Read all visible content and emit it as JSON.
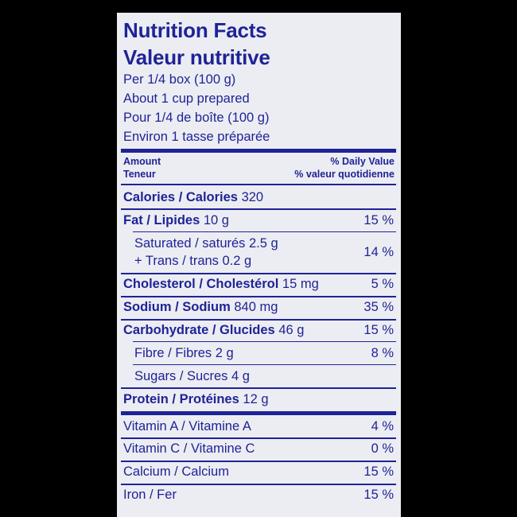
{
  "title": {
    "en": "Nutrition Facts",
    "fr": "Valeur nutritive"
  },
  "serving": [
    "Per 1/4 box (100 g)",
    "About 1 cup prepared",
    "Pour 1/4 de boîte (100 g)",
    "Environ 1 tasse préparée"
  ],
  "header": {
    "amount_en": "Amount",
    "amount_fr": "Teneur",
    "dv_en": "% Daily Value",
    "dv_fr": "% valeur quotidienne"
  },
  "calories": {
    "label": "Calories / Calories",
    "value": "320"
  },
  "fat": {
    "label": "Fat / Lipides",
    "amount": "10 g",
    "dv": "15 %"
  },
  "saturated": {
    "line1": "Saturated / saturés 2.5 g",
    "line2": "+ Trans / trans 0.2 g",
    "dv": "14 %"
  },
  "cholesterol": {
    "label": "Cholesterol / Cholestérol",
    "amount": "15 mg",
    "dv": "5 %"
  },
  "sodium": {
    "label": "Sodium / Sodium",
    "amount": "840 mg",
    "dv": "35 %"
  },
  "carbohydrate": {
    "label": "Carbohydrate / Glucides",
    "amount": "46 g",
    "dv": "15 %"
  },
  "fibre": {
    "label": "Fibre / Fibres 2 g",
    "dv": "8 %"
  },
  "sugars": {
    "label": "Sugars / Sucres 4 g"
  },
  "protein": {
    "label": "Protein / Protéines",
    "amount": "12 g"
  },
  "vitamins": [
    {
      "label": "Vitamin A / Vitamine A",
      "dv": "4 %"
    },
    {
      "label": "Vitamin C / Vitamine C",
      "dv": "0 %"
    },
    {
      "label": "Calcium / Calcium",
      "dv": "15 %"
    },
    {
      "label": "Iron / Fer",
      "dv": "15 %"
    }
  ],
  "colors": {
    "ink": "#1f2396",
    "panel": "#ecedf2",
    "background": "#000000"
  }
}
